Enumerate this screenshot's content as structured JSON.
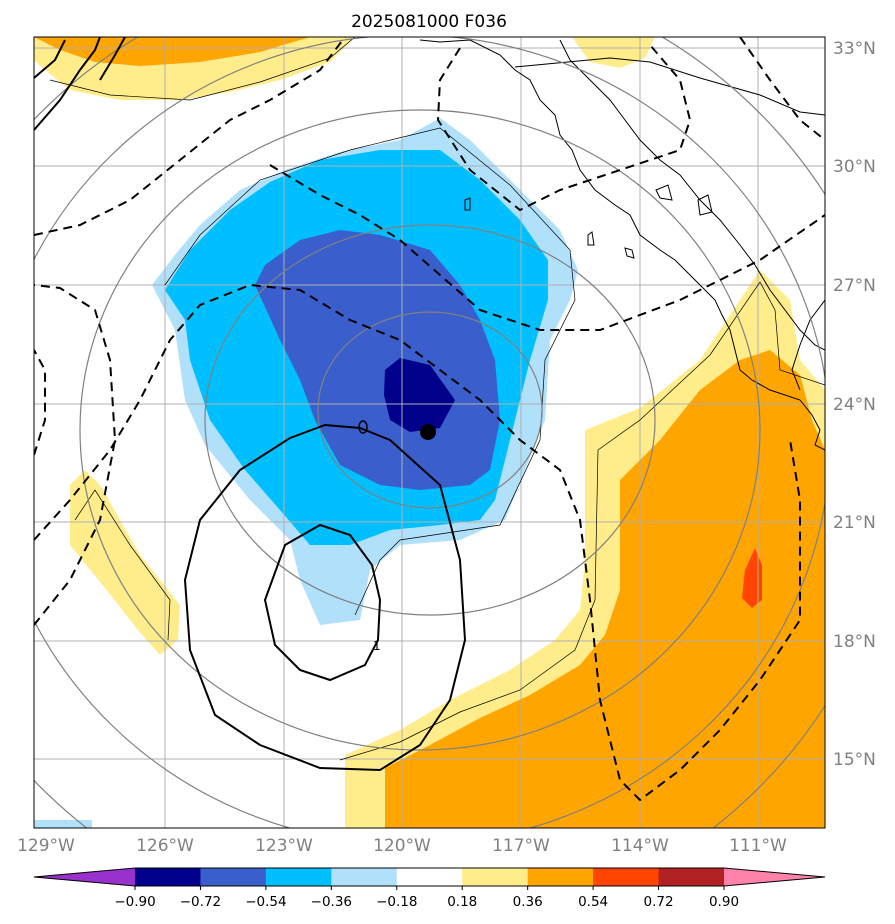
{
  "title": "2025081000 F036",
  "map": {
    "lat_labels": [
      "33°N",
      "30°N",
      "27°N",
      "24°N",
      "21°N",
      "18°N",
      "15°N"
    ],
    "lon_labels": [
      "129°W",
      "126°W",
      "123°W",
      "120°W",
      "117°W",
      "114°W",
      "111°W"
    ],
    "extent": {
      "lon_min": -129.0,
      "lon_max": -109.0,
      "lat_min": 13.5,
      "lat_max": 33.3
    },
    "center_marker": {
      "lon": -119.3,
      "lat": 23.3
    },
    "contour_label": "1"
  },
  "colorbar": {
    "labels": [
      "−0.90",
      "−0.72",
      "−0.54",
      "−0.36",
      "−0.18",
      "0.18",
      "0.36",
      "0.54",
      "0.72",
      "0.90"
    ],
    "bins": [
      {
        "from": null,
        "to": -0.9,
        "color": "#9932cc"
      },
      {
        "from": -0.9,
        "to": -0.72,
        "color": "#00008b"
      },
      {
        "from": -0.72,
        "to": -0.54,
        "color": "#3a5fcd"
      },
      {
        "from": -0.54,
        "to": -0.36,
        "color": "#00bfff"
      },
      {
        "from": -0.36,
        "to": -0.18,
        "color": "#b0e0fa"
      },
      {
        "from": -0.18,
        "to": 0.18,
        "color": "#ffffff"
      },
      {
        "from": 0.18,
        "to": 0.36,
        "color": "#ffec8b"
      },
      {
        "from": 0.36,
        "to": 0.54,
        "color": "#ffa500"
      },
      {
        "from": 0.54,
        "to": 0.72,
        "color": "#ff4500"
      },
      {
        "from": 0.72,
        "to": 0.9,
        "color": "#b22222"
      },
      {
        "from": 0.9,
        "to": null,
        "color": "#ff82ab"
      }
    ]
  },
  "colors": {
    "grid": "#b0b0b0",
    "geo_contour": "#808080",
    "coast": "#000000"
  }
}
